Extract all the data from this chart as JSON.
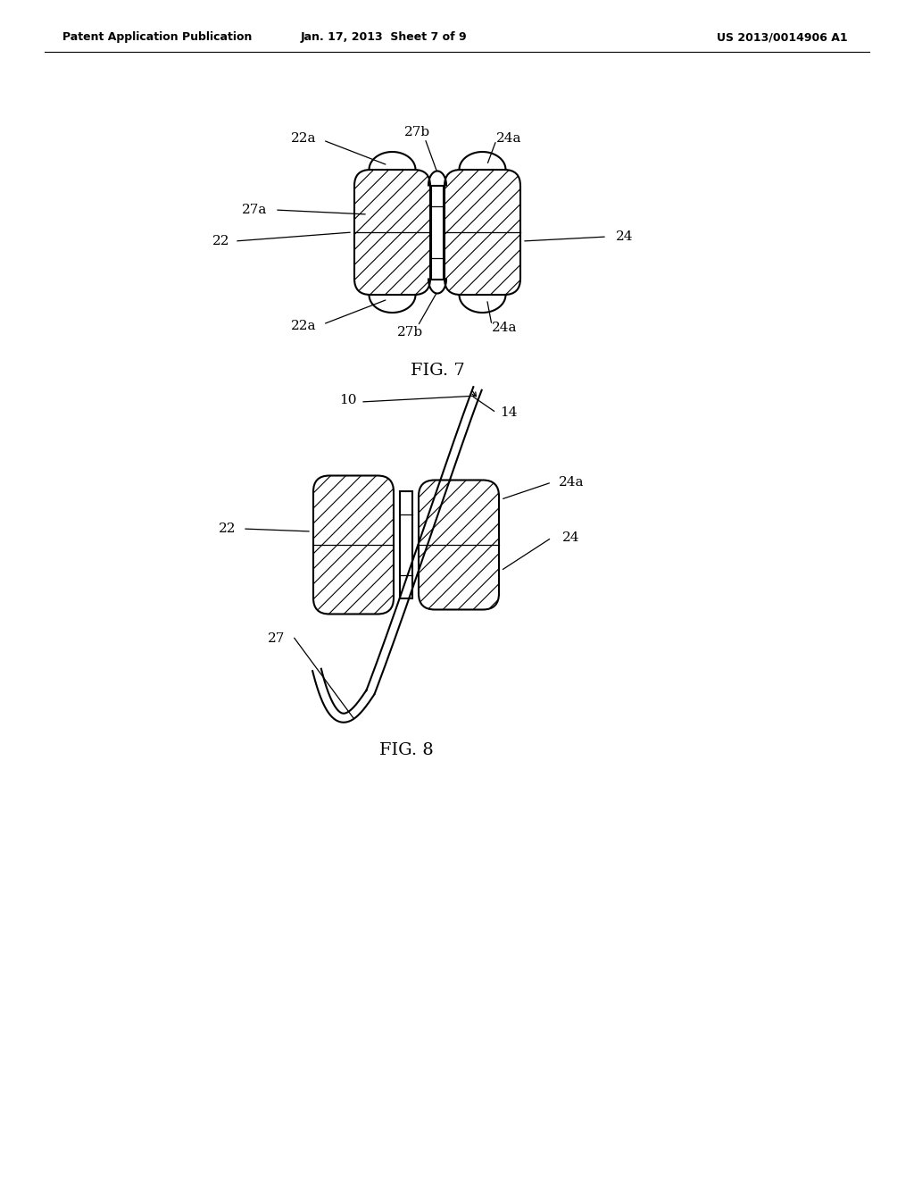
{
  "background_color": "#ffffff",
  "header_left": "Patent Application Publication",
  "header_center": "Jan. 17, 2013  Sheet 7 of 9",
  "header_right": "US 2013/0014906 A1",
  "fig7_title": "FIG. 7",
  "fig8_title": "FIG. 8",
  "line_color": "#000000"
}
